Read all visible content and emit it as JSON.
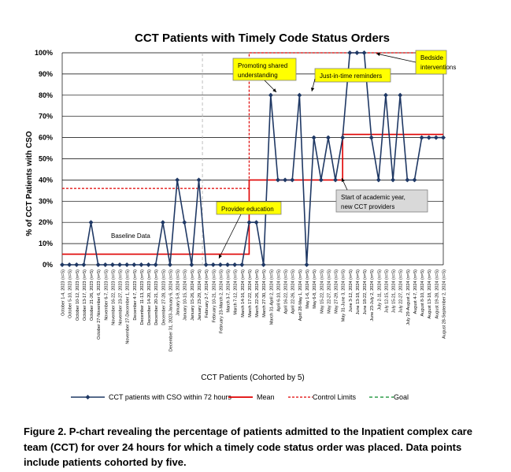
{
  "colors": {
    "series": "#1f3864",
    "mean": "#e00000",
    "control_limits": "#e00000",
    "goal": "#2e9e4a",
    "annotation_yellow": "#ffff00",
    "annotation_gray": "#d9d9d9",
    "grid": "#000000"
  },
  "chart_data": {
    "type": "line",
    "title": "CCT Patients with Timely Code Status Orders",
    "xlabel": "CCT Patients (Cohorted by 5)",
    "ylabel": "% of CCT Patients with CSO",
    "ylim": [
      0,
      100
    ],
    "yticks": [
      "0%",
      "10%",
      "20%",
      "30%",
      "40%",
      "50%",
      "60%",
      "70%",
      "80%",
      "90%",
      "100%"
    ],
    "grid": true,
    "legend_position": "bottom",
    "categories": [
      "October 1-4, 2023 (n=5)",
      "October 5-10, 2023 (n=5)",
      "October 10-12, 2023 (n=5)",
      "October 13-17, 2023 (n=5)",
      "October 21-26, 2023 (n=5)",
      "October 27-November 6, 2023 (n=5)",
      "November 6-7, 2023 (n=5)",
      "November 16-22, 2023 (n=5)",
      "November 23-27, 2023 (n=5)",
      "November 27-December 1, 2023 (n=5)",
      "December 4-7, 2023 (n=5)",
      "December 11-13, 2023 (n=5)",
      "December 14-20, 2023 (n=5)",
      "December 20-21, 2023 (n=5)",
      "December 27-28, 2023 (n=5)",
      "December 31, 2023-January 6, 2024 (n=5)",
      "January 5-9, 2024 (n=5)",
      "January 10-15, 2024 (n=5)",
      "January 15-26, 2024 (n=5)",
      "January 23-29, 2024 (n=5)",
      "February 2-7, 2024 (n=5)",
      "February 10-21, 2024 (n=5)",
      "February 23-March 2, 2024 (n=5)",
      "March 3-7, 2024 (n=5)",
      "March 7-12, 2024 (n=5)",
      "March 14-16, 2024 (n=5)",
      "March 17-22, 2024 (n=5)",
      "March 22-26, 2024 (n=5)",
      "March 27-30, 2024 (n=5)",
      "March 31-April 2, 2024 (n=5)",
      "April 6-10, 2024 (n=5)",
      "April 16-22, 2024 (n=5)",
      "April 22-26, 2024 (n=5)",
      "April 28-May 1, 2024 (n=5)",
      "May 1-6, 2024 (n=5)",
      "May 6-8, 2024 (n=5)",
      "May 15-22, 2024 (n=5)",
      "May 22-27, 2024 (n=5)",
      "May 27-29, 2024 (n=5)",
      "May 31-June 3, 2024 (n=5)",
      "June 3-12, 2024 (n=5)",
      "June 13-18, 2024 (n=5)",
      "June 18-22, 2024 (n=5)",
      "June 23-July 2, 2024 (n=5)",
      "July 2-11, 2024 (n=5)",
      "July 12-15, 2024 (n=5)",
      "July 15-21, 2024 (n=5)",
      "July 22-27, 2024 (n=5)",
      "July 29-August 2, 2024 (n=5)",
      "August 4-7, 2024 (n=5)",
      "August 8-10, 2024 (n=5)",
      "August 13-18, 2024 (n=5)",
      "August 19-28, 2024 (n=5)",
      "August 28-September 2, 2024 (n=5)"
    ],
    "series": [
      {
        "name": "CCT patients with CSO within 72 hours",
        "values": [
          0,
          0,
          0,
          0,
          20,
          0,
          0,
          0,
          0,
          0,
          0,
          0,
          0,
          0,
          20,
          0,
          40,
          20,
          0,
          40,
          0,
          0,
          0,
          0,
          0,
          0,
          20,
          20,
          0,
          80,
          40,
          40,
          40,
          80,
          0,
          60,
          40,
          60,
          40,
          60,
          100,
          100,
          100,
          60,
          40,
          80,
          40,
          80,
          40,
          40,
          60,
          60,
          60,
          60
        ]
      },
      {
        "name": "Mean",
        "steps": [
          {
            "from": 0,
            "to": 26,
            "value": 5
          },
          {
            "from": 26,
            "to": 39,
            "value": 40
          },
          {
            "from": 39,
            "to": 53,
            "value": 61.5
          }
        ]
      },
      {
        "name": "Control Limits",
        "steps": [
          {
            "from": 0,
            "to": 26,
            "value": 36
          },
          {
            "from": 26,
            "to": 53,
            "value": 100
          }
        ]
      },
      {
        "name": "Goal"
      }
    ],
    "annotations": [
      {
        "id": "promoting",
        "text": [
          "Promoting shared",
          "understanding"
        ],
        "style": "yellow"
      },
      {
        "id": "jit",
        "text": [
          "Just-in-time reminders"
        ],
        "style": "yellow"
      },
      {
        "id": "bedside",
        "text": [
          "Bedside",
          "interventions"
        ],
        "style": "yellow"
      },
      {
        "id": "provider",
        "text": [
          "Provider education"
        ],
        "style": "yellow"
      },
      {
        "id": "academic",
        "text": [
          "Start of academic year,",
          "new CCT providers"
        ],
        "style": "gray"
      },
      {
        "id": "baseline",
        "text": [
          "Baseline Data"
        ],
        "style": "plain"
      }
    ]
  },
  "caption": {
    "lines": [
      "Figure 2. P-chart revealing the percentage of patients admitted to the Inpatient complex care",
      "team (CCT) for over 24 hours for which a timely code status order was placed. Data points",
      "include patients cohorted by five."
    ]
  }
}
